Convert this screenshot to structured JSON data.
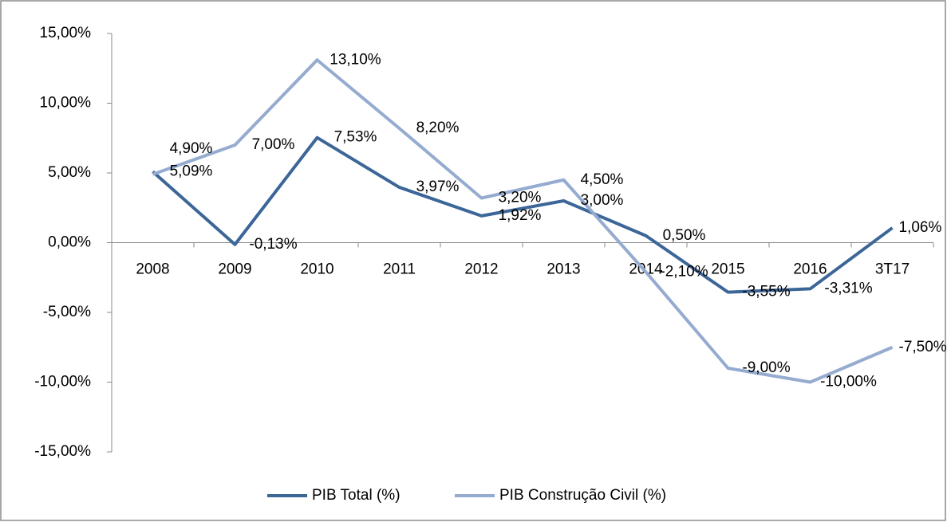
{
  "chart_data": {
    "type": "line",
    "categories": [
      "2008",
      "2009",
      "2010",
      "2011",
      "2012",
      "2013",
      "2014",
      "2015",
      "2016",
      "3T17"
    ],
    "series": [
      {
        "name": "PIB Total (%)",
        "color": "#3c6698",
        "values": [
          5.09,
          -0.13,
          7.53,
          3.97,
          1.92,
          3.0,
          0.5,
          -3.55,
          -3.31,
          1.06
        ],
        "value_labels": [
          "5,09%",
          "-0,13%",
          "7,53%",
          "3,97%",
          "1,92%",
          "3,00%",
          "0,50%",
          "-3,55%",
          "-3,31%",
          "1,06%"
        ]
      },
      {
        "name": "PIB Construção Civil (%)",
        "color": "#95abd0",
        "values": [
          4.9,
          7.0,
          13.1,
          8.2,
          3.2,
          4.5,
          -2.1,
          -9.0,
          -10.0,
          -7.5
        ],
        "value_labels": [
          "4,90%",
          "7,00%",
          "13,10%",
          "8,20%",
          "3,20%",
          "4,50%",
          "-2,10%",
          "-9,00%",
          "-10,00%",
          "-7,50%"
        ]
      }
    ],
    "ylim": [
      -15,
      15
    ],
    "yticks": [
      {
        "value": -15,
        "label": "-15,00%"
      },
      {
        "value": -10,
        "label": "-10,00%"
      },
      {
        "value": -5,
        "label": "-5,00%"
      },
      {
        "value": 0,
        "label": "0,00%"
      },
      {
        "value": 5,
        "label": "5,00%"
      },
      {
        "value": 10,
        "label": "10,00%"
      },
      {
        "value": 15,
        "label": "15,00%"
      }
    ],
    "legend": "bottom"
  }
}
